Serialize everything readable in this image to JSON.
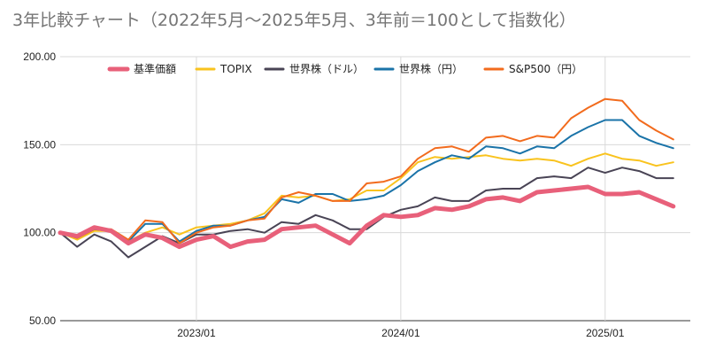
{
  "chart_data": {
    "type": "line",
    "title": "3年比較チャート（2022年5月〜2025年5月、3年前＝100として指数化）",
    "xlabel": "",
    "ylabel": "",
    "ylim": [
      50,
      200
    ],
    "yticks": [
      "50.00",
      "100.00",
      "150.00",
      "200.00"
    ],
    "xlim": [
      "2022-05",
      "2025-06"
    ],
    "xticks": [
      {
        "label": "2023/01",
        "date": "2023-01"
      },
      {
        "label": "2024/01",
        "date": "2024-01"
      },
      {
        "label": "2025/01",
        "date": "2025-01"
      }
    ],
    "grid": true,
    "legend_position": "top",
    "x": [
      "2022-05",
      "2022-06",
      "2022-07",
      "2022-08",
      "2022-09",
      "2022-10",
      "2022-11",
      "2022-12",
      "2023-01",
      "2023-02",
      "2023-03",
      "2023-04",
      "2023-05",
      "2023-06",
      "2023-07",
      "2023-08",
      "2023-09",
      "2023-10",
      "2023-11",
      "2023-12",
      "2024-01",
      "2024-02",
      "2024-03",
      "2024-04",
      "2024-05",
      "2024-06",
      "2024-07",
      "2024-08",
      "2024-09",
      "2024-10",
      "2024-11",
      "2024-12",
      "2025-01",
      "2025-02",
      "2025-03",
      "2025-04",
      "2025-05"
    ],
    "series": [
      {
        "name": "基準価額",
        "color": "#e8607a",
        "width": 5,
        "values": [
          100,
          98,
          103,
          101,
          94,
          99,
          97,
          92,
          96,
          98,
          92,
          95,
          96,
          102,
          103,
          104,
          99,
          94,
          104,
          110,
          109,
          110,
          114,
          113,
          115,
          119,
          120,
          118,
          123,
          124,
          125,
          126,
          122,
          122,
          123,
          119,
          115
        ]
      },
      {
        "name": "TOPIX",
        "color": "#f9c31e",
        "width": 2,
        "values": [
          100,
          96,
          101,
          101,
          95,
          100,
          103,
          99,
          103,
          104,
          105,
          107,
          111,
          121,
          120,
          121,
          118,
          119,
          124,
          124,
          131,
          140,
          143,
          142,
          143,
          144,
          142,
          141,
          142,
          141,
          138,
          142,
          145,
          142,
          141,
          138,
          140
        ]
      },
      {
        "name": "世界株（ドル）",
        "color": "#494455",
        "width": 2,
        "values": [
          100,
          92,
          99,
          95,
          86,
          92,
          98,
          94,
          99,
          99,
          101,
          102,
          100,
          106,
          105,
          110,
          107,
          102,
          102,
          109,
          113,
          115,
          120,
          118,
          118,
          124,
          125,
          125,
          131,
          132,
          131,
          137,
          134,
          137,
          135,
          131,
          131
        ]
      },
      {
        "name": "世界株（円）",
        "color": "#1a73a8",
        "width": 2,
        "values": [
          100,
          97,
          102,
          101,
          95,
          105,
          105,
          95,
          101,
          104,
          104,
          107,
          109,
          119,
          117,
          122,
          122,
          118,
          119,
          121,
          127,
          135,
          140,
          144,
          142,
          149,
          148,
          145,
          149,
          148,
          155,
          160,
          164,
          164,
          155,
          151,
          148
        ]
      },
      {
        "name": "S&P500（円）",
        "color": "#f26b1d",
        "width": 2,
        "values": [
          100,
          97,
          102,
          102,
          96,
          107,
          106,
          94,
          100,
          103,
          104,
          107,
          108,
          120,
          123,
          121,
          118,
          118,
          128,
          129,
          132,
          142,
          148,
          149,
          146,
          154,
          155,
          152,
          155,
          154,
          165,
          171,
          176,
          175,
          164,
          158,
          153
        ]
      }
    ]
  }
}
